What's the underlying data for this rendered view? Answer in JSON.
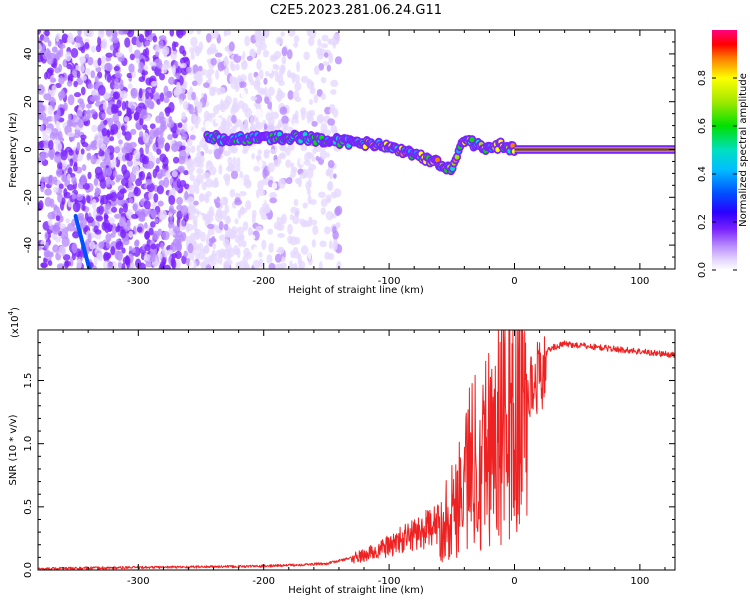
{
  "title": "C2E5.2023.281.06.24.G11",
  "chart_data": [
    {
      "type": "heatmap",
      "xlabel": "Height of straight line (km)",
      "ylabel": "Frequency (Hz)",
      "xlim": [
        -380,
        128
      ],
      "ylim": [
        -50,
        50
      ],
      "xticks": [
        -300,
        -200,
        -100,
        0,
        100
      ],
      "yticks": [
        -40,
        -20,
        0,
        20,
        40
      ],
      "colorbar": {
        "label": "Normalized spectral amplitude",
        "range": [
          0.0,
          1.0
        ],
        "ticks": [
          "0.0",
          "0.2",
          "0.4",
          "0.6",
          "0.8"
        ],
        "colormap": [
          "#ffffff",
          "#e6d8ff",
          "#b98cff",
          "#7a22ff",
          "#3a00ff",
          "#0050ff",
          "#00bfff",
          "#00e0c0",
          "#00e000",
          "#a0e800",
          "#ffff00",
          "#ff8000",
          "#ff0000",
          "#ff0080"
        ]
      },
      "signal_track": [
        {
          "x": -245,
          "y": 6
        },
        {
          "x": -230,
          "y": 4
        },
        {
          "x": -200,
          "y": 5
        },
        {
          "x": -170,
          "y": 5
        },
        {
          "x": -150,
          "y": 4
        },
        {
          "x": -130,
          "y": 3
        },
        {
          "x": -110,
          "y": 2
        },
        {
          "x": -95,
          "y": 0
        },
        {
          "x": -80,
          "y": -2
        },
        {
          "x": -70,
          "y": -4
        },
        {
          "x": -60,
          "y": -6
        },
        {
          "x": -50,
          "y": -8
        },
        {
          "x": -40,
          "y": 4
        },
        {
          "x": -30,
          "y": 2
        },
        {
          "x": -20,
          "y": 0
        },
        {
          "x": -10,
          "y": 2
        },
        {
          "x": 0,
          "y": 0
        },
        {
          "x": 50,
          "y": 0
        },
        {
          "x": 128,
          "y": 0
        }
      ]
    },
    {
      "type": "line",
      "xlabel": "Height of straight line (km)",
      "ylabel": "SNR (10 * v/v)",
      "scale_label": "(x10",
      "scale_exp": "4",
      "scale_close": ")",
      "xlim": [
        -380,
        128
      ],
      "ylim": [
        0,
        1.9
      ],
      "xticks": [
        -300,
        -200,
        -100,
        0,
        100
      ],
      "yticks": [
        "0.0",
        "0.5",
        "1.0",
        "1.5"
      ],
      "color": "#ee2222",
      "series": [
        {
          "x": [
            -380,
            -300,
            -200,
            -150,
            -120,
            -100,
            -80,
            -60,
            -50,
            -40,
            -30,
            -20,
            -10,
            0,
            10,
            20,
            30,
            40,
            50,
            60,
            80,
            100,
            128
          ],
          "y": [
            0.01,
            0.02,
            0.03,
            0.05,
            0.12,
            0.2,
            0.3,
            0.38,
            0.5,
            0.8,
            1.0,
            1.1,
            1.2,
            1.3,
            1.5,
            1.68,
            1.76,
            1.79,
            1.78,
            1.77,
            1.75,
            1.73,
            1.7
          ]
        }
      ]
    }
  ]
}
